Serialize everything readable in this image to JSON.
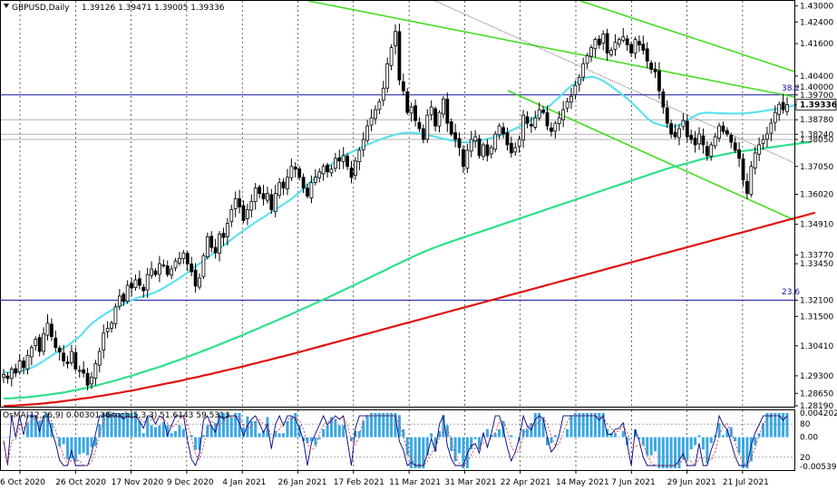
{
  "header": {
    "symbol": "GBPUSD,Daily",
    "ohlc": "1.39126 1.39471 1.39005 1.39336"
  },
  "indicator": {
    "osma_label": "OsMA(12,26,9) 0.0030136",
    "stoch_label": "Stoch(5,3,3) 51.6143 59.5313",
    "axis_labels": [
      "0.004202",
      "80",
      "0.00",
      "20",
      "-0.005396"
    ]
  },
  "price_axis": {
    "labels": [
      "1.43000",
      "1.42400",
      "1.41600",
      "1.40400",
      "1.40000",
      "1.39700",
      "1.39336",
      "1.38780",
      "1.38240",
      "1.38050",
      "1.37050",
      "1.36020",
      "1.34910",
      "1.33770",
      "1.33450",
      "1.32100",
      "1.31500",
      "1.30410",
      "1.29300",
      "1.28650",
      "1.28190"
    ],
    "current": "1.39336"
  },
  "date_axis": {
    "labels": [
      "6 Oct 2020",
      "26 Oct 2020",
      "17 Nov 2020",
      "9 Dec 2020",
      "4 Jan 2021",
      "26 Jan 2021",
      "17 Feb 2021",
      "11 Mar 2021",
      "31 Mar 2021",
      "22 Apr 2021",
      "14 May 2021",
      "7 Jun 2021",
      "29 Jun 2021",
      "21 Jul 2021"
    ]
  },
  "fib_labels": {
    "upper": "38.2",
    "lower": "23.6"
  },
  "colors": {
    "candle": "#000000",
    "ema_cyan": "#5ee0ee",
    "ema_green": "#2ee08a",
    "ema_red": "#e01010",
    "channel": "#44dd22",
    "level_blue": "#1010a0",
    "level_gray": "#b0b0b0",
    "hist": "#3aa8e0",
    "stoch_main": "#000080",
    "stoch_signal": "#d04040"
  },
  "chart_data": {
    "type": "candlestick",
    "ylim": [
      1.2819,
      1.4318
    ],
    "osma_ylim": [
      -0.0054,
      0.0042
    ],
    "closes": [
      1.2935,
      1.292,
      1.2955,
      1.294,
      1.2985,
      1.296,
      1.3005,
      1.3035,
      1.3065,
      1.302,
      1.3085,
      1.3125,
      1.3075,
      1.3035,
      1.3018,
      1.2985,
      1.2975,
      1.302,
      1.2955,
      1.295,
      1.294,
      1.2895,
      1.2925,
      1.2975,
      1.302,
      1.3088,
      1.3105,
      1.3125,
      1.3185,
      1.3225,
      1.3205,
      1.3265,
      1.3255,
      1.3285,
      1.3265,
      1.3245,
      1.3305,
      1.3325,
      1.3305,
      1.3345,
      1.334,
      1.3305,
      1.3325,
      1.3355,
      1.3365,
      1.3385,
      1.3345,
      1.3315,
      1.3262,
      1.3292,
      1.3375,
      1.3445,
      1.3405,
      1.3385,
      1.3455,
      1.3442,
      1.3495,
      1.3545,
      1.3585,
      1.3555,
      1.3505,
      1.3545,
      1.3575,
      1.3625,
      1.3605,
      1.3585,
      1.3605,
      1.3545,
      1.3605,
      1.3645,
      1.3625,
      1.3665,
      1.3705,
      1.3695,
      1.3665,
      1.3625,
      1.3595,
      1.3645,
      1.3665,
      1.3685,
      1.3705,
      1.3685,
      1.3695,
      1.3735,
      1.3725,
      1.3745,
      1.3705,
      1.3665,
      1.3725,
      1.3765,
      1.3805,
      1.3855,
      1.3885,
      1.3915,
      1.3945,
      1.3995,
      1.4085,
      1.4145,
      1.4205,
      1.4025,
      1.3985,
      1.3905,
      1.3925,
      1.3875,
      1.3845,
      1.3805,
      1.3895,
      1.3925,
      1.3855,
      1.3905,
      1.3955,
      1.3865,
      1.3825,
      1.3805,
      1.3775,
      1.3705,
      1.3765,
      1.3805,
      1.3815,
      1.3745,
      1.3785,
      1.3745,
      1.3775,
      1.3825,
      1.3855,
      1.3825,
      1.3785,
      1.3755,
      1.3775,
      1.3805,
      1.3895,
      1.3865,
      1.3855,
      1.3885,
      1.3915,
      1.3905,
      1.3855,
      1.3835,
      1.3865,
      1.3885,
      1.3915,
      1.3945,
      1.3965,
      1.4005,
      1.4035,
      1.4085,
      1.4115,
      1.4145,
      1.4175,
      1.4155,
      1.4195,
      1.4125,
      1.4135,
      1.4165,
      1.4175,
      1.4185,
      1.4155,
      1.4125,
      1.4175,
      1.4155,
      1.4135,
      1.4095,
      1.4065,
      1.4055,
      1.3985,
      1.3925,
      1.3865,
      1.3825,
      1.3815,
      1.3845,
      1.3875,
      1.3815,
      1.3805,
      1.3785,
      1.3825,
      1.3785,
      1.3745,
      1.3785,
      1.3815,
      1.3855,
      1.3835,
      1.3825,
      1.3795,
      1.3765,
      1.3735,
      1.3655,
      1.3605,
      1.3705,
      1.3755,
      1.3785,
      1.3805,
      1.3825,
      1.3865,
      1.3905,
      1.3935,
      1.3915,
      1.3934
    ],
    "ema_cyan": [
      1.2942,
      1.2942,
      1.2942,
      1.2943,
      1.2946,
      1.295,
      1.2955,
      1.296,
      1.2967,
      1.2976,
      1.2985,
      1.2995,
      1.3004,
      1.3014,
      1.3024,
      1.3032,
      1.3041,
      1.3052,
      1.3064,
      1.3076,
      1.3091,
      1.3108,
      1.3123,
      1.3134,
      1.3145,
      1.3155,
      1.3164,
      1.3173,
      1.3181,
      1.3188,
      1.3196,
      1.3203,
      1.321,
      1.3216,
      1.3221,
      1.3225,
      1.3229,
      1.3234,
      1.324,
      1.3247,
      1.3255,
      1.3264,
      1.3273,
      1.3282,
      1.3292,
      1.3302,
      1.3312,
      1.3323,
      1.3334,
      1.3345,
      1.3356,
      1.3367,
      1.3378,
      1.339,
      1.3401,
      1.3412,
      1.3424,
      1.3435,
      1.3446,
      1.3457,
      1.3468,
      1.3478,
      1.3488,
      1.3498,
      1.3508,
      1.3517,
      1.3527,
      1.3537,
      1.3546,
      1.3555,
      1.3565,
      1.3575,
      1.3585,
      1.3597,
      1.3609,
      1.3623,
      1.3638,
      1.3652,
      1.3664,
      1.3677,
      1.3689,
      1.3701,
      1.3713,
      1.3725,
      1.3736,
      1.3745,
      1.3752,
      1.3758,
      1.3765,
      1.3772,
      1.3779,
      1.3786,
      1.3792,
      1.3798,
      1.3804,
      1.3809,
      1.3814,
      1.3819,
      1.3823,
      1.3826,
      1.3829,
      1.383,
      1.383,
      1.3829,
      1.3827,
      1.3825,
      1.3822,
      1.3818,
      1.3815,
      1.3811,
      1.3808,
      1.3805,
      1.3802,
      1.3799,
      1.3796,
      1.3795,
      1.3795,
      1.3796,
      1.3798,
      1.3801,
      1.3803,
      1.3807,
      1.3811,
      1.3815,
      1.3819,
      1.3825,
      1.3831,
      1.3838,
      1.3845,
      1.3852,
      1.386,
      1.3869,
      1.3879,
      1.3889,
      1.3899,
      1.391,
      1.3922,
      1.3935,
      1.3948,
      1.3962,
      1.3976,
      1.3991,
      1.4004,
      1.4013,
      1.4022,
      1.403,
      1.4035,
      1.4037,
      1.4035,
      1.4029,
      1.4022,
      1.4012,
      1.4002,
      1.3991,
      1.398,
      1.3968,
      1.3956,
      1.3943,
      1.3929,
      1.3914,
      1.3899,
      1.3884,
      1.3872,
      1.3865,
      1.386,
      1.3856,
      1.3853,
      1.3852,
      1.3853,
      1.3859,
      1.3866,
      1.3875,
      1.3884,
      1.3893,
      1.39,
      1.3903,
      1.3904,
      1.3904,
      1.3903,
      1.3902,
      1.3902,
      1.3901,
      1.3901,
      1.3901,
      1.3901,
      1.3902,
      1.3903,
      1.3904,
      1.3906,
      1.3908,
      1.391,
      1.3913,
      1.3915,
      1.3917,
      1.3919,
      1.3922,
      1.3925,
      1.3929,
      1.3932,
      1.3935,
      1.3938,
      1.3941,
      1.3943,
      1.3945,
      1.3948,
      1.395,
      1.3952
    ],
    "ema_green": [
      1.2846,
      1.2846,
      1.2847,
      1.2848,
      1.2849,
      1.285,
      1.2851,
      1.2853,
      1.2854,
      1.2856,
      1.2858,
      1.286,
      1.2862,
      1.2864,
      1.2866,
      1.2868,
      1.2871,
      1.2874,
      1.2877,
      1.288,
      1.2883,
      1.2886,
      1.289,
      1.2893,
      1.2897,
      1.2901,
      1.2905,
      1.2909,
      1.2913,
      1.2917,
      1.2922,
      1.2926,
      1.293,
      1.2935,
      1.294,
      1.2944,
      1.2949,
      1.2954,
      1.2958,
      1.2963,
      1.2968,
      1.2974,
      1.2979,
      1.2984,
      1.2989,
      1.2995,
      1.3,
      1.3006,
      1.3011,
      1.3017,
      1.3023,
      1.3028,
      1.3034,
      1.304,
      1.3046,
      1.3052,
      1.3058,
      1.3064,
      1.307,
      1.3076,
      1.3082,
      1.3089,
      1.3095,
      1.3101,
      1.3107,
      1.3114,
      1.312,
      1.3126,
      1.3133,
      1.3139,
      1.3146,
      1.3152,
      1.3159,
      1.3165,
      1.3172,
      1.3179,
      1.3185,
      1.3192,
      1.3199,
      1.3206,
      1.3212,
      1.3219,
      1.3226,
      1.3233,
      1.324,
      1.3247,
      1.3254,
      1.3261,
      1.3268,
      1.3275,
      1.3282,
      1.3289,
      1.3297,
      1.3304,
      1.3311,
      1.3318,
      1.3325,
      1.3333,
      1.334,
      1.3347,
      1.3354,
      1.3361,
      1.3368,
      1.3375,
      1.3381,
      1.3388,
      1.3394,
      1.34,
      1.3406,
      1.3411,
      1.3417,
      1.3422,
      1.3427,
      1.3432,
      1.3437,
      1.3442,
      1.3447,
      1.3452,
      1.3457,
      1.3462,
      1.3467,
      1.3472,
      1.3477,
      1.3482,
      1.3487,
      1.3492,
      1.3497,
      1.3502,
      1.3507,
      1.3512,
      1.3517,
      1.3522,
      1.3527,
      1.3532,
      1.3537,
      1.3542,
      1.3547,
      1.3552,
      1.3557,
      1.3562,
      1.3567,
      1.3572,
      1.3577,
      1.3582,
      1.3587,
      1.3592,
      1.3597,
      1.3602,
      1.3607,
      1.3612,
      1.3617,
      1.3622,
      1.3627,
      1.3632,
      1.3637,
      1.3642,
      1.3647,
      1.3652,
      1.3657,
      1.3662,
      1.3667,
      1.3672,
      1.3677,
      1.3682,
      1.3687,
      1.3692,
      1.3697,
      1.3701,
      1.3705,
      1.3709,
      1.3713,
      1.3717,
      1.3721,
      1.3725,
      1.3729,
      1.3733,
      1.3737,
      1.374,
      1.3743,
      1.3746,
      1.3749,
      1.3752,
      1.3755,
      1.3758,
      1.376,
      1.3762,
      1.3764,
      1.3766,
      1.3768,
      1.377,
      1.3772,
      1.3774,
      1.3776,
      1.3778,
      1.378,
      1.3782,
      1.3784,
      1.3786,
      1.3788,
      1.379,
      1.3792,
      1.3794,
      1.3796
    ],
    "ema_red": [
      1.2818,
      1.2819,
      1.2819,
      1.282,
      1.2821,
      1.2822,
      1.2823,
      1.2824,
      1.2825,
      1.2826,
      1.2828,
      1.2829,
      1.2831,
      1.2832,
      1.2834,
      1.2836,
      1.2838,
      1.284,
      1.2842,
      1.2844,
      1.2846,
      1.2848,
      1.285,
      1.2853,
      1.2855,
      1.2857,
      1.286,
      1.2862,
      1.2865,
      1.2867,
      1.287,
      1.2873,
      1.2875,
      1.2878,
      1.2881,
      1.2884,
      1.2887,
      1.289,
      1.2893,
      1.2896,
      1.2899,
      1.2902,
      1.2905,
      1.2908,
      1.2911,
      1.2914,
      1.2918,
      1.2921,
      1.2924,
      1.2927,
      1.2931,
      1.2934,
      1.2937,
      1.2941,
      1.2944,
      1.2948,
      1.2951,
      1.2955,
      1.2958,
      1.2962,
      1.2965,
      1.2969,
      1.2973,
      1.2976,
      1.298,
      1.2984,
      1.2987,
      1.2991,
      1.2995,
      1.2999,
      1.3002,
      1.3006,
      1.301,
      1.3014,
      1.3018,
      1.3022,
      1.3026,
      1.303,
      1.3034,
      1.3038,
      1.3042,
      1.3046,
      1.305,
      1.3054,
      1.3058,
      1.3062,
      1.3066,
      1.307,
      1.3074,
      1.3078,
      1.3082,
      1.3086,
      1.309,
      1.3094,
      1.3098,
      1.3102,
      1.3106,
      1.311,
      1.3114,
      1.3118,
      1.3122,
      1.3126,
      1.313,
      1.3134,
      1.3138,
      1.3142,
      1.3146,
      1.315,
      1.3154,
      1.3158,
      1.3162,
      1.3166,
      1.317,
      1.3174,
      1.3178,
      1.3182,
      1.3186,
      1.319,
      1.3194,
      1.3198,
      1.3202,
      1.3206,
      1.321,
      1.3214,
      1.3218,
      1.3222,
      1.3226,
      1.323,
      1.3234,
      1.3238,
      1.3242,
      1.3246,
      1.325,
      1.3254,
      1.3258,
      1.3262,
      1.3266,
      1.327,
      1.3274,
      1.3278,
      1.3282,
      1.3286,
      1.329,
      1.3294,
      1.3298,
      1.3302,
      1.3306,
      1.331,
      1.3314,
      1.3318,
      1.3322,
      1.3326,
      1.333,
      1.3334,
      1.3338,
      1.3342,
      1.3346,
      1.335,
      1.3354,
      1.3358,
      1.3362,
      1.3366,
      1.337,
      1.3374,
      1.3378,
      1.3382,
      1.3386,
      1.339,
      1.3394,
      1.3398,
      1.3402,
      1.3406,
      1.341,
      1.3414,
      1.3418,
      1.3422,
      1.3426,
      1.343,
      1.3434,
      1.3438,
      1.3442,
      1.3446,
      1.345,
      1.3454,
      1.3458,
      1.3462,
      1.3466,
      1.347,
      1.3474,
      1.3478,
      1.3482,
      1.3486,
      1.349,
      1.3494,
      1.3498,
      1.3502,
      1.3506,
      1.351,
      1.3514,
      1.3518,
      1.3522,
      1.3526,
      1.353,
      1.3534
    ],
    "horizontal_levels": [
      {
        "price": 1.397,
        "style": "blue"
      },
      {
        "price": 1.3878,
        "style": "gray"
      },
      {
        "price": 1.3824,
        "style": "gray"
      },
      {
        "price": 1.3805,
        "style": "gray"
      },
      {
        "price": 1.321,
        "style": "blue"
      }
    ]
  }
}
